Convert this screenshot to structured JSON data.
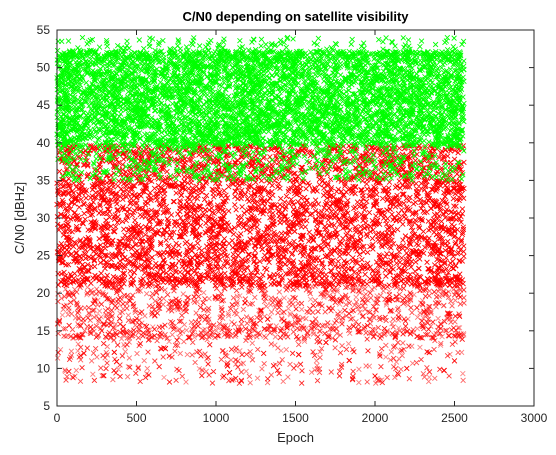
{
  "chart_data": {
    "type": "scatter",
    "title": "C/N0 depending on satellite visibility",
    "xlabel": "Epoch",
    "ylabel": "C/N0 [dBHz]",
    "xlim": [
      0,
      3000
    ],
    "ylim": [
      5,
      55
    ],
    "xticks": [
      "0",
      "500",
      "1000",
      "1500",
      "2000",
      "2500",
      "3000"
    ],
    "yticks": [
      "5",
      "10",
      "15",
      "20",
      "25",
      "30",
      "35",
      "40",
      "45",
      "50",
      "55"
    ],
    "grid": false,
    "legend": false,
    "marker": "x",
    "series": [
      {
        "color": "#ff0000",
        "x_range": [
          0,
          2560
        ],
        "y_range": [
          8,
          40
        ],
        "description_points": [
          {
            "x": 100,
            "y": 30
          },
          {
            "x": 300,
            "y": 25
          },
          {
            "x": 500,
            "y": 28
          },
          {
            "x": 700,
            "y": 22
          },
          {
            "x": 900,
            "y": 30
          },
          {
            "x": 1050,
            "y": 9
          },
          {
            "x": 1300,
            "y": 12
          },
          {
            "x": 1600,
            "y": 26
          },
          {
            "x": 2000,
            "y": 9
          },
          {
            "x": 2200,
            "y": 10
          },
          {
            "x": 2500,
            "y": 11
          }
        ]
      },
      {
        "color": "#00ff00",
        "x_range": [
          0,
          2560
        ],
        "y_range": [
          35,
          54
        ],
        "description_points": [
          {
            "x": 100,
            "y": 48
          },
          {
            "x": 500,
            "y": 45
          },
          {
            "x": 950,
            "y": 53
          },
          {
            "x": 1450,
            "y": 54
          },
          {
            "x": 1900,
            "y": 47
          },
          {
            "x": 2500,
            "y": 52
          }
        ]
      }
    ]
  }
}
